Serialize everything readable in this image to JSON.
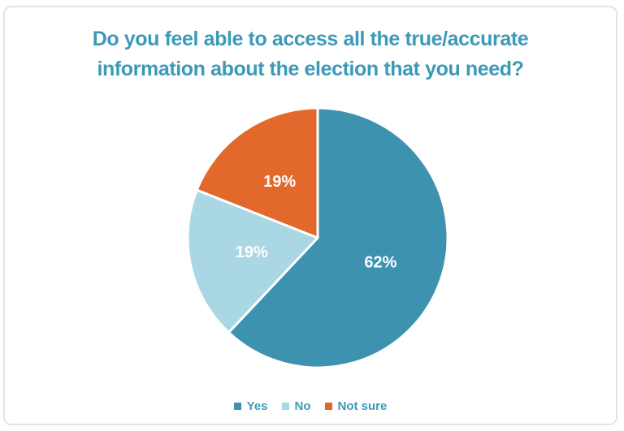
{
  "frame": {
    "background": "#ffffff",
    "border_color": "#dde6ec"
  },
  "title": {
    "lines": [
      "Do you feel able to access all the true/accurate",
      "information about the election that you need?"
    ],
    "color": "#3b9ab8"
  },
  "chart_data": {
    "type": "pie",
    "title": "Do you feel able to access all the true/accurate information about the election that you need?",
    "categories": [
      "Yes",
      "No",
      "Not sure"
    ],
    "values": [
      62,
      19,
      19
    ],
    "unit": "%",
    "slice_colors": [
      "#3d92af",
      "#a9d7e4",
      "#e2682c"
    ],
    "data_label_color": "#ffffff",
    "start_angle_deg": 0,
    "direction": "clockwise",
    "legend_position": "bottom",
    "legend_text_color": "#3b9ab8"
  }
}
